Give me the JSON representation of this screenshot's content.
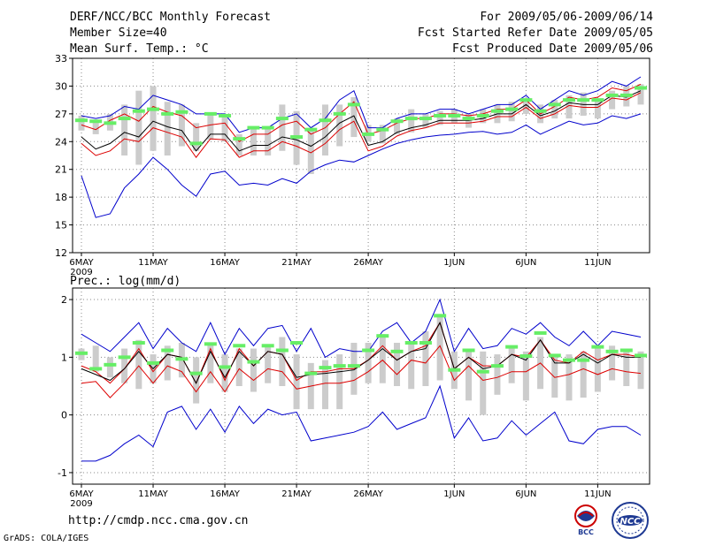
{
  "header": {
    "title": "DERF/NCC/BCC Monthly Forecast",
    "member_size": "Member Size=40",
    "variable1": "Mean Surf. Temp.: °C",
    "period": "For 2009/05/06-2009/06/14",
    "start_date": "Fcst Started Refer Date 2009/05/05",
    "produced_date": "Fcst Produced Date 2009/05/06"
  },
  "footer": {
    "url": "http://cmdp.ncc.cma.gov.cn",
    "credit": "GrADS: COLA/IGES",
    "logo1_text": "BCC",
    "logo2_text": "NCC"
  },
  "colors": {
    "max_min": "#0000cc",
    "spread": "#dd0000",
    "mean": "#000000",
    "ensemble_bar": "#cccccc",
    "marker": "#66ee66",
    "grid": "#888888"
  },
  "chart_data": [
    {
      "type": "line",
      "title": "Mean Surf. Temp.: °C",
      "x_tick_labels": [
        "6MAY",
        "11MAY",
        "16MAY",
        "21MAY",
        "26MAY",
        "1JUN",
        "6JUN",
        "11JUN"
      ],
      "x_tick_index": [
        0,
        5,
        10,
        15,
        20,
        26,
        31,
        36
      ],
      "x_year_label": "2009",
      "ylim": [
        12,
        33
      ],
      "y_ticks": [
        12,
        15,
        18,
        21,
        24,
        27,
        30,
        33
      ],
      "series": [
        {
          "name": "max",
          "color": "#0000cc",
          "values": [
            26.8,
            26.5,
            26.8,
            27.8,
            27.5,
            29.0,
            28.5,
            28.0,
            27.0,
            27.0,
            27.0,
            25.0,
            25.5,
            25.5,
            26.5,
            27.0,
            25.5,
            26.5,
            28.5,
            29.5,
            25.5,
            25.5,
            26.5,
            27.0,
            27.0,
            27.5,
            27.5,
            27.0,
            27.5,
            28.0,
            28.0,
            29.0,
            27.5,
            28.5,
            29.5,
            29.0,
            29.5,
            30.5,
            30.0,
            31.0
          ]
        },
        {
          "name": "upper",
          "color": "#dd0000",
          "values": [
            25.8,
            25.3,
            26.3,
            27.0,
            26.2,
            27.8,
            27.2,
            26.8,
            25.5,
            25.8,
            26.0,
            24.0,
            24.8,
            24.8,
            25.8,
            26.2,
            24.8,
            25.5,
            27.0,
            28.3,
            24.8,
            25.2,
            26.0,
            26.5,
            26.5,
            27.0,
            27.0,
            26.8,
            27.0,
            27.5,
            27.5,
            28.5,
            27.0,
            27.8,
            28.8,
            28.5,
            28.8,
            29.8,
            29.5,
            30.2
          ]
        },
        {
          "name": "mean",
          "color": "#000000",
          "values": [
            24.5,
            23.2,
            23.8,
            25.0,
            24.5,
            26.2,
            25.6,
            25.2,
            23.0,
            24.8,
            24.8,
            23.0,
            23.6,
            23.6,
            24.5,
            24.2,
            23.5,
            24.5,
            26.0,
            26.8,
            23.6,
            24.0,
            25.0,
            25.5,
            25.8,
            26.3,
            26.3,
            26.3,
            26.5,
            27.0,
            27.0,
            28.0,
            26.8,
            27.3,
            28.2,
            28.0,
            28.0,
            29.0,
            28.8,
            29.5
          ]
        },
        {
          "name": "lower",
          "color": "#dd0000",
          "values": [
            23.8,
            22.5,
            23.0,
            24.3,
            24.0,
            25.5,
            25.0,
            24.5,
            22.3,
            24.3,
            24.2,
            22.3,
            23.0,
            23.0,
            24.0,
            23.5,
            22.8,
            23.8,
            25.3,
            26.2,
            23.0,
            23.5,
            24.6,
            25.2,
            25.5,
            26.0,
            26.0,
            26.0,
            26.2,
            26.7,
            26.7,
            27.7,
            26.5,
            27.0,
            27.9,
            27.7,
            27.7,
            28.7,
            28.5,
            29.3
          ]
        },
        {
          "name": "min",
          "color": "#0000cc",
          "values": [
            20.3,
            15.8,
            16.2,
            19.0,
            20.5,
            22.3,
            21.0,
            19.3,
            18.1,
            20.5,
            20.8,
            19.3,
            19.5,
            19.3,
            20.0,
            19.5,
            20.8,
            21.5,
            22.0,
            21.8,
            22.5,
            23.2,
            23.8,
            24.2,
            24.5,
            24.7,
            24.8,
            25.0,
            25.1,
            24.8,
            25.0,
            25.8,
            24.8,
            25.5,
            26.2,
            25.8,
            26.0,
            26.8,
            26.5,
            27.0
          ]
        }
      ],
      "bars": {
        "low": [
          25.2,
          24.8,
          25.2,
          22.5,
          21.5,
          23.0,
          22.5,
          23.5,
          23.0,
          24.2,
          24.0,
          22.5,
          22.5,
          22.5,
          23.0,
          21.5,
          20.5,
          22.5,
          23.5,
          24.5,
          24.0,
          23.8,
          24.8,
          25.0,
          25.5,
          25.8,
          26.0,
          25.5,
          26.0,
          26.0,
          26.2,
          27.0,
          26.0,
          26.5,
          26.5,
          26.8,
          26.5,
          27.5,
          27.8,
          28.0
        ],
        "high": [
          26.8,
          26.3,
          27.0,
          28.0,
          29.5,
          30.0,
          28.3,
          28.0,
          26.0,
          27.0,
          27.0,
          24.8,
          25.5,
          25.5,
          28.0,
          27.3,
          25.5,
          28.0,
          28.0,
          28.8,
          25.8,
          25.8,
          26.5,
          27.5,
          27.0,
          27.3,
          27.5,
          27.0,
          27.5,
          28.0,
          28.3,
          28.5,
          28.0,
          28.5,
          29.0,
          29.3,
          28.5,
          29.5,
          30.0,
          30.2
        ]
      },
      "markers": [
        26.3,
        26.2,
        26.0,
        26.5,
        27.3,
        27.5,
        27.0,
        27.2,
        23.8,
        27.0,
        26.8,
        24.3,
        25.5,
        25.5,
        26.5,
        24.5,
        25.3,
        26.3,
        27.0,
        28.0,
        24.8,
        25.3,
        26.2,
        26.5,
        26.5,
        26.8,
        26.8,
        26.5,
        26.8,
        27.3,
        27.5,
        28.5,
        27.3,
        28.0,
        28.5,
        28.5,
        28.5,
        29.0,
        29.0,
        29.8
      ]
    },
    {
      "type": "line",
      "title": "Prec.: log(mm/d)",
      "x_tick_labels": [
        "6MAY",
        "11MAY",
        "16MAY",
        "21MAY",
        "26MAY",
        "1JUN",
        "6JUN",
        "11JUN"
      ],
      "x_tick_index": [
        0,
        5,
        10,
        15,
        20,
        26,
        31,
        36
      ],
      "x_year_label": "2009",
      "ylim": [
        -1.2,
        2.2
      ],
      "y_ticks": [
        -1,
        0,
        1,
        2
      ],
      "series": [
        {
          "name": "max",
          "color": "#0000cc",
          "values": [
            1.4,
            1.25,
            1.1,
            1.35,
            1.6,
            1.15,
            1.5,
            1.25,
            1.1,
            1.6,
            1.05,
            1.5,
            1.2,
            1.5,
            1.55,
            1.1,
            1.5,
            1.0,
            1.15,
            1.1,
            1.1,
            1.45,
            1.6,
            1.25,
            1.45,
            2.0,
            1.1,
            1.5,
            1.15,
            1.2,
            1.5,
            1.4,
            1.6,
            1.35,
            1.2,
            1.45,
            1.2,
            1.45,
            1.4,
            1.35
          ]
        },
        {
          "name": "upper",
          "color": "#dd0000",
          "values": [
            0.85,
            0.75,
            0.55,
            0.8,
            1.15,
            0.75,
            1.05,
            1.0,
            0.55,
            1.15,
            0.6,
            1.15,
            0.85,
            1.1,
            1.05,
            0.6,
            0.75,
            0.75,
            0.8,
            0.8,
            0.95,
            1.2,
            0.95,
            1.1,
            1.2,
            1.6,
            0.8,
            1.0,
            0.85,
            0.85,
            1.05,
            1.0,
            1.3,
            0.95,
            0.9,
            1.1,
            0.95,
            1.05,
            1.05,
            1.0
          ]
        },
        {
          "name": "mean",
          "color": "#000000",
          "values": [
            0.8,
            0.7,
            0.6,
            0.8,
            1.1,
            0.8,
            1.05,
            1.0,
            0.55,
            1.1,
            0.65,
            1.1,
            0.85,
            1.1,
            1.05,
            0.65,
            0.7,
            0.72,
            0.75,
            0.78,
            0.95,
            1.15,
            0.95,
            1.1,
            1.15,
            1.6,
            0.8,
            1.0,
            0.8,
            0.85,
            1.05,
            0.95,
            1.3,
            0.9,
            0.9,
            1.05,
            0.9,
            1.05,
            1.0,
            1.0
          ]
        },
        {
          "name": "lower",
          "color": "#dd0000",
          "values": [
            0.55,
            0.58,
            0.3,
            0.55,
            0.85,
            0.55,
            0.85,
            0.75,
            0.4,
            0.75,
            0.4,
            0.8,
            0.6,
            0.8,
            0.75,
            0.45,
            0.5,
            0.55,
            0.55,
            0.6,
            0.75,
            0.95,
            0.7,
            0.95,
            0.9,
            1.2,
            0.6,
            0.85,
            0.6,
            0.65,
            0.75,
            0.75,
            0.9,
            0.65,
            0.7,
            0.8,
            0.7,
            0.8,
            0.75,
            0.72
          ]
        },
        {
          "name": "min",
          "color": "#0000cc",
          "values": [
            -0.8,
            -0.8,
            -0.7,
            -0.5,
            -0.35,
            -0.55,
            0.05,
            0.15,
            -0.25,
            0.1,
            -0.3,
            0.15,
            -0.15,
            0.1,
            0.0,
            0.05,
            -0.45,
            -0.4,
            -0.35,
            -0.3,
            -0.2,
            0.05,
            -0.25,
            -0.15,
            -0.05,
            0.5,
            -0.4,
            -0.05,
            -0.45,
            -0.4,
            -0.1,
            -0.35,
            -0.15,
            0.05,
            -0.45,
            -0.5,
            -0.25,
            -0.2,
            -0.2,
            -0.35
          ]
        },
        {
          "name": "min-alt",
          "color": "#0000cc",
          "values": []
        }
      ],
      "bars": {
        "low": [
          0.95,
          0.75,
          0.65,
          0.55,
          0.45,
          0.55,
          0.6,
          0.65,
          0.2,
          0.55,
          0.4,
          0.5,
          0.4,
          0.55,
          0.5,
          0.1,
          0.1,
          0.1,
          0.1,
          0.35,
          0.55,
          0.55,
          0.5,
          0.45,
          0.5,
          0.6,
          0.45,
          0.25,
          0.0,
          0.35,
          0.55,
          0.25,
          0.45,
          0.3,
          0.25,
          0.3,
          0.4,
          0.6,
          0.5,
          0.45
        ],
        "high": [
          1.15,
          1.2,
          1.0,
          1.15,
          1.3,
          1.05,
          1.2,
          1.25,
          1.0,
          1.25,
          1.05,
          1.15,
          1.15,
          1.2,
          1.35,
          1.05,
          0.9,
          0.95,
          1.05,
          1.25,
          1.25,
          1.4,
          1.25,
          1.25,
          1.45,
          1.75,
          1.1,
          1.1,
          1.1,
          1.05,
          1.2,
          1.1,
          1.35,
          1.05,
          1.05,
          1.1,
          1.15,
          1.2,
          1.15,
          1.1
        ]
      },
      "markers": [
        1.07,
        0.8,
        0.87,
        1.0,
        1.25,
        0.9,
        1.12,
        0.97,
        0.72,
        1.23,
        0.83,
        1.2,
        0.92,
        1.2,
        1.12,
        1.25,
        0.72,
        0.82,
        0.85,
        0.85,
        1.12,
        1.37,
        1.1,
        1.25,
        1.25,
        1.72,
        0.78,
        1.12,
        0.75,
        0.85,
        1.18,
        1.02,
        1.42,
        1.03,
        0.95,
        0.95,
        1.18,
        1.1,
        1.12,
        1.03
      ]
    }
  ]
}
